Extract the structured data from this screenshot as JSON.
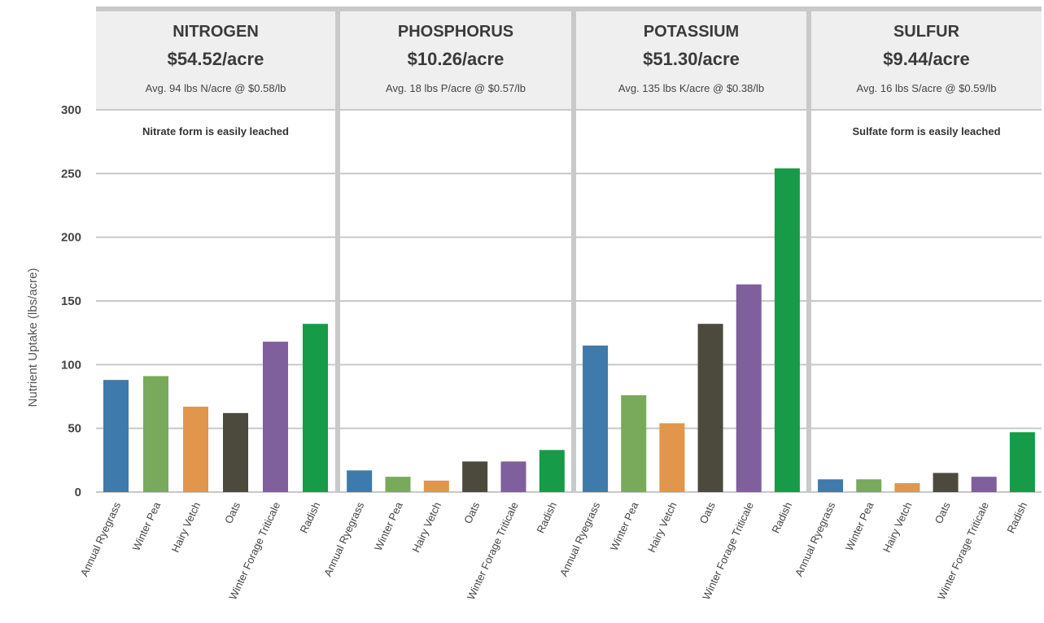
{
  "chart_data": {
    "type": "bar",
    "ylabel": "Nutrient Uptake (lbs/acre)",
    "ylim": [
      0,
      300
    ],
    "yticks": [
      0,
      50,
      100,
      150,
      200,
      250,
      300
    ],
    "grid": true,
    "categories": [
      "Annual Ryegrass",
      "Winter Pea",
      "Hairy Vetch",
      "Oats",
      "Winter Forage Triticale",
      "Radish"
    ],
    "category_colors": [
      "#3e7aab",
      "#79a95a",
      "#e0964b",
      "#4b4a3c",
      "#7f5f9c",
      "#169b48"
    ],
    "panels": [
      {
        "title": "NITROGEN",
        "price": "$54.52/acre",
        "subtitle": "Avg. 94 lbs N/acre @ $0.58/lb",
        "note": "Nitrate form is easily leached",
        "values": [
          88,
          91,
          67,
          62,
          118,
          132
        ]
      },
      {
        "title": "PHOSPHORUS",
        "price": "$10.26/acre",
        "subtitle": "Avg. 18 lbs P/acre @ $0.57/lb",
        "note": "",
        "values": [
          17,
          12,
          9,
          24,
          24,
          33
        ]
      },
      {
        "title": "POTASSIUM",
        "price": "$51.30/acre",
        "subtitle": "Avg. 135 lbs K/acre @ $0.38/lb",
        "note": "",
        "values": [
          115,
          76,
          54,
          132,
          163,
          254
        ]
      },
      {
        "title": "SULFUR",
        "price": "$9.44/acre",
        "subtitle": "Avg. 16 lbs S/acre @ $0.59/lb",
        "note": "Sulfate form is easily leached",
        "values": [
          10,
          10,
          7,
          15,
          12,
          47
        ]
      }
    ]
  }
}
